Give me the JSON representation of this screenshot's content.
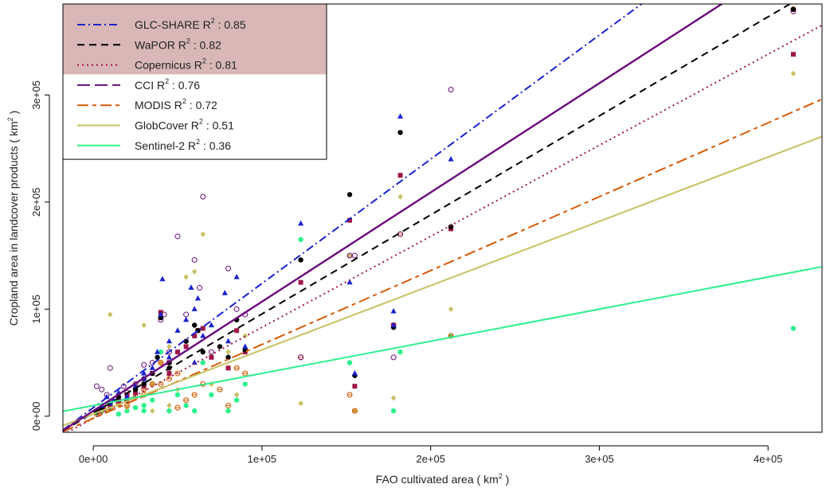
{
  "chart_data": {
    "type": "scatter",
    "xlabel": "FAO cultivated area ( km",
    "xlabel_unit_sup": "2",
    "xlabel_end": " )",
    "ylabel": "Cropland area in landcover products ( km",
    "ylabel_unit_sup": "2",
    "ylabel_end": " )",
    "xlim": [
      -18000,
      432000
    ],
    "ylim": [
      -15000,
      385000
    ],
    "x_ticks": [
      0,
      100000,
      200000,
      300000,
      400000
    ],
    "x_tick_labels": [
      "0e+00",
      "1e+05",
      "2e+05",
      "3e+05",
      "4e+05"
    ],
    "y_ticks": [
      0,
      100000,
      200000,
      300000
    ],
    "y_tick_labels": [
      "0e+00",
      "1e+05",
      "2e+05",
      "3e+05"
    ],
    "legend_position": "top-left",
    "legend_highlight_color": "#d9b7b7",
    "series": [
      {
        "name": "GLC-SHARE",
        "r2_label": "R",
        "r2_sup": "2",
        "r2_value": " : 0.85",
        "color": "#1a22cc",
        "dash": "dotdash",
        "marker": "triangle",
        "highlight": true,
        "line": {
          "slope": 1.16,
          "intercept": 8000
        },
        "points": [
          [
            2000,
            5000
          ],
          [
            5000,
            10000
          ],
          [
            8000,
            18000
          ],
          [
            12000,
            15000
          ],
          [
            15000,
            22000
          ],
          [
            20000,
            18000
          ],
          [
            25000,
            28000
          ],
          [
            30000,
            35000
          ],
          [
            35000,
            45000
          ],
          [
            38000,
            60000
          ],
          [
            40000,
            95000
          ],
          [
            41000,
            128000
          ],
          [
            45000,
            55000
          ],
          [
            50000,
            80000
          ],
          [
            55000,
            90000
          ],
          [
            58000,
            120000
          ],
          [
            60000,
            100000
          ],
          [
            62000,
            110000
          ],
          [
            65000,
            75000
          ],
          [
            70000,
            85000
          ],
          [
            78000,
            115000
          ],
          [
            80000,
            70000
          ],
          [
            85000,
            130000
          ],
          [
            90000,
            65000
          ],
          [
            123000,
            180000
          ],
          [
            152000,
            125000
          ],
          [
            155000,
            40000
          ],
          [
            178000,
            98000
          ],
          [
            182000,
            280000
          ],
          [
            212000,
            240000
          ],
          [
            178000,
            85000
          ],
          [
            30000,
            40000
          ],
          [
            45000,
            70000
          ],
          [
            60000,
            50000
          ],
          [
            10000,
            12000
          ]
        ]
      },
      {
        "name": "WaPOR",
        "r2_label": "R",
        "r2_sup": "2",
        "r2_value": " : 0.82",
        "color": "#000000",
        "dash": "dash",
        "marker": "circle",
        "highlight": true,
        "line": {
          "slope": 0.925,
          "intercept": 3000
        },
        "points": [
          [
            2000,
            4000
          ],
          [
            5000,
            8000
          ],
          [
            10000,
            12000
          ],
          [
            15000,
            18000
          ],
          [
            20000,
            15000
          ],
          [
            25000,
            25000
          ],
          [
            30000,
            30000
          ],
          [
            35000,
            40000
          ],
          [
            38000,
            55000
          ],
          [
            40000,
            92000
          ],
          [
            45000,
            50000
          ],
          [
            55000,
            70000
          ],
          [
            60000,
            85000
          ],
          [
            62000,
            80000
          ],
          [
            65000,
            60000
          ],
          [
            75000,
            65000
          ],
          [
            80000,
            55000
          ],
          [
            85000,
            90000
          ],
          [
            90000,
            62000
          ],
          [
            123000,
            146000
          ],
          [
            152000,
            207000
          ],
          [
            155000,
            38000
          ],
          [
            178000,
            83000
          ],
          [
            182000,
            265000
          ],
          [
            212000,
            177000
          ],
          [
            415000,
            380000
          ],
          [
            30000,
            35000
          ],
          [
            45000,
            45000
          ]
        ]
      },
      {
        "name": "Copernicus",
        "r2_label": "R",
        "r2_sup": "2",
        "r2_value": " : 0.81",
        "color": "#a0174a",
        "dash": "dot",
        "marker": "square",
        "highlight": true,
        "line": {
          "slope": 0.85,
          "intercept": -2000
        },
        "points": [
          [
            3000,
            5000
          ],
          [
            6000,
            7000
          ],
          [
            10000,
            10000
          ],
          [
            15000,
            14000
          ],
          [
            20000,
            20000
          ],
          [
            25000,
            22000
          ],
          [
            30000,
            28000
          ],
          [
            35000,
            40000
          ],
          [
            40000,
            97000
          ],
          [
            45000,
            50000
          ],
          [
            50000,
            60000
          ],
          [
            55000,
            65000
          ],
          [
            60000,
            75000
          ],
          [
            62000,
            80000
          ],
          [
            65000,
            82000
          ],
          [
            70000,
            55000
          ],
          [
            80000,
            45000
          ],
          [
            85000,
            80000
          ],
          [
            90000,
            60000
          ],
          [
            123000,
            125000
          ],
          [
            152000,
            183000
          ],
          [
            155000,
            28000
          ],
          [
            178000,
            85000
          ],
          [
            182000,
            225000
          ],
          [
            212000,
            175000
          ],
          [
            415000,
            338000
          ],
          [
            30000,
            30000
          ],
          [
            45000,
            40000
          ]
        ]
      },
      {
        "name": "CCI",
        "r2_label": "R",
        "r2_sup": "2",
        "r2_value": " : 0.76",
        "color": "#6a0a7a",
        "dash": "longdash",
        "marker": "diamond-open",
        "highlight": false,
        "line": {
          "slope": 1.02,
          "intercept": 5000
        },
        "points": [
          [
            2000,
            28000
          ],
          [
            5000,
            25000
          ],
          [
            8000,
            20000
          ],
          [
            10000,
            45000
          ],
          [
            15000,
            15000
          ],
          [
            18000,
            28000
          ],
          [
            20000,
            22000
          ],
          [
            25000,
            30000
          ],
          [
            30000,
            48000
          ],
          [
            35000,
            50000
          ],
          [
            40000,
            90000
          ],
          [
            42000,
            95000
          ],
          [
            45000,
            60000
          ],
          [
            50000,
            168000
          ],
          [
            55000,
            95000
          ],
          [
            60000,
            146000
          ],
          [
            63000,
            120000
          ],
          [
            65000,
            205000
          ],
          [
            70000,
            60000
          ],
          [
            80000,
            138000
          ],
          [
            85000,
            100000
          ],
          [
            90000,
            95000
          ],
          [
            123000,
            55000
          ],
          [
            152000,
            150000
          ],
          [
            155000,
            150000
          ],
          [
            178000,
            55000
          ],
          [
            182000,
            170000
          ],
          [
            212000,
            305000
          ],
          [
            415000,
            378000
          ]
        ]
      },
      {
        "name": "MODIS",
        "r2_label": "R",
        "r2_sup": "2",
        "r2_value": " : 0.72",
        "color": "#d65a06",
        "dash": "twodash",
        "marker": "plus",
        "highlight": false,
        "line": {
          "slope": 0.69,
          "intercept": -2000
        },
        "points": [
          [
            2000,
            2000
          ],
          [
            5000,
            5000
          ],
          [
            10000,
            8000
          ],
          [
            15000,
            12000
          ],
          [
            20000,
            10000
          ],
          [
            25000,
            18000
          ],
          [
            30000,
            25000
          ],
          [
            35000,
            30000
          ],
          [
            40000,
            50000
          ],
          [
            45000,
            35000
          ],
          [
            50000,
            40000
          ],
          [
            55000,
            15000
          ],
          [
            60000,
            20000
          ],
          [
            65000,
            30000
          ],
          [
            75000,
            25000
          ],
          [
            80000,
            10000
          ],
          [
            85000,
            45000
          ],
          [
            90000,
            40000
          ],
          [
            123000,
            55000
          ],
          [
            152000,
            20000
          ],
          [
            155000,
            5000
          ],
          [
            178000,
            85000
          ],
          [
            182000,
            170000
          ],
          [
            212000,
            75000
          ],
          [
            415000,
            380000
          ],
          [
            30000,
            20000
          ],
          [
            40000,
            30000
          ],
          [
            50000,
            8000
          ]
        ]
      },
      {
        "name": "GlobCover",
        "r2_label": "R",
        "r2_sup": "2",
        "r2_value": " : 0.51",
        "color": "#c8c064",
        "dash": "solid",
        "marker": "diamond",
        "highlight": false,
        "line": {
          "slope": 0.6,
          "intercept": 2000
        },
        "points": [
          [
            3000,
            3000
          ],
          [
            8000,
            5000
          ],
          [
            10000,
            95000
          ],
          [
            15000,
            10000
          ],
          [
            20000,
            8000
          ],
          [
            25000,
            30000
          ],
          [
            30000,
            85000
          ],
          [
            35000,
            30000
          ],
          [
            40000,
            50000
          ],
          [
            45000,
            10000
          ],
          [
            50000,
            25000
          ],
          [
            55000,
            130000
          ],
          [
            60000,
            135000
          ],
          [
            65000,
            170000
          ],
          [
            70000,
            30000
          ],
          [
            80000,
            60000
          ],
          [
            85000,
            20000
          ],
          [
            90000,
            75000
          ],
          [
            123000,
            12000
          ],
          [
            152000,
            150000
          ],
          [
            155000,
            5000
          ],
          [
            178000,
            17000
          ],
          [
            182000,
            205000
          ],
          [
            212000,
            100000
          ],
          [
            415000,
            320000
          ],
          [
            35000,
            5000
          ],
          [
            45000,
            65000
          ]
        ]
      },
      {
        "name": "Sentinel-2",
        "r2_label": "R",
        "r2_sup": "2",
        "r2_value": " : 0.36",
        "color": "#2ef08e",
        "dash": "solid",
        "marker": "circle",
        "highlight": false,
        "line": {
          "slope": 0.3,
          "intercept": 10000
        },
        "points": [
          [
            2000,
            3000
          ],
          [
            5000,
            5000
          ],
          [
            10000,
            8000
          ],
          [
            15000,
            2000
          ],
          [
            20000,
            5000
          ],
          [
            25000,
            8000
          ],
          [
            30000,
            10000
          ],
          [
            35000,
            15000
          ],
          [
            40000,
            60000
          ],
          [
            45000,
            5000
          ],
          [
            50000,
            20000
          ],
          [
            55000,
            10000
          ],
          [
            60000,
            5000
          ],
          [
            65000,
            50000
          ],
          [
            70000,
            20000
          ],
          [
            80000,
            5000
          ],
          [
            85000,
            15000
          ],
          [
            90000,
            30000
          ],
          [
            123000,
            165000
          ],
          [
            152000,
            50000
          ],
          [
            155000,
            5000
          ],
          [
            178000,
            5000
          ],
          [
            182000,
            60000
          ],
          [
            212000,
            75000
          ],
          [
            415000,
            82000
          ],
          [
            30000,
            5000
          ]
        ]
      }
    ],
    "extra_line": {
      "color": "#6a0a7a",
      "dash": "solid",
      "slope": 1.02,
      "intercept": 5000
    }
  }
}
